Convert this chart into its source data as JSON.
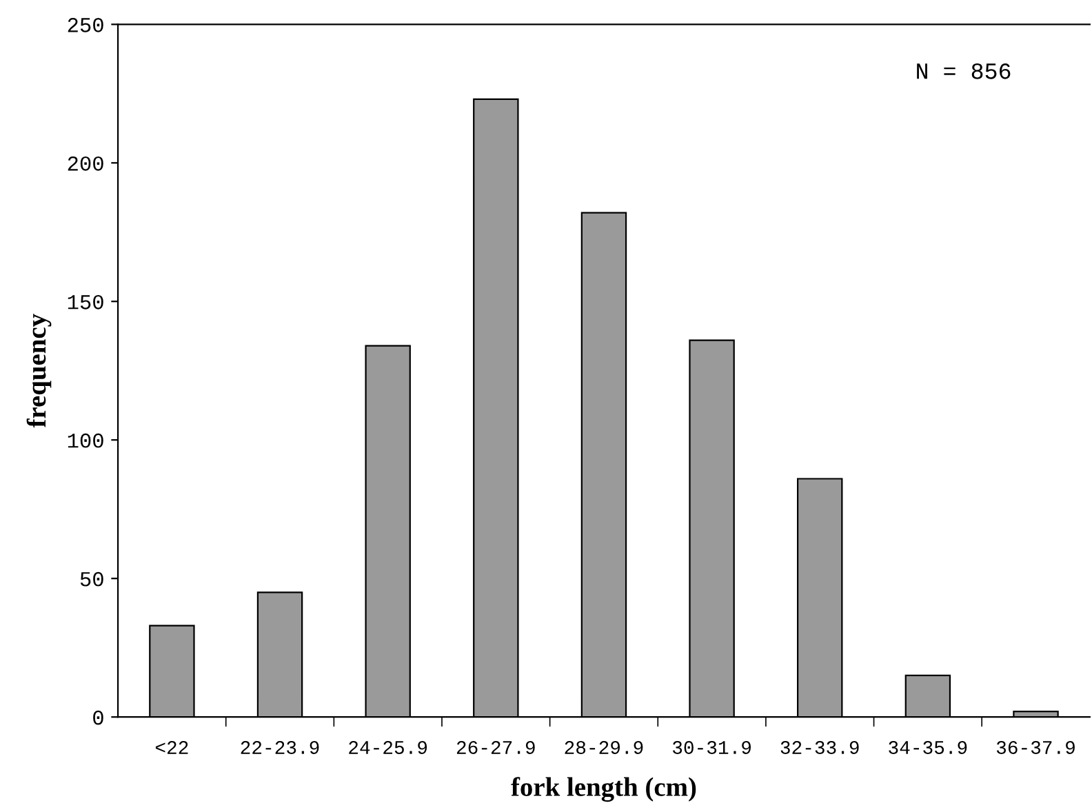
{
  "chart_data": {
    "type": "bar",
    "xlabel": "fork length (cm)",
    "ylabel": "frequency",
    "categories": [
      "<22",
      "22-23.9",
      "24-25.9",
      "26-27.9",
      "28-29.9",
      "30-31.9",
      "32-33.9",
      "34-35.9",
      "36-37.9"
    ],
    "values": [
      33,
      45,
      134,
      223,
      182,
      136,
      86,
      15,
      2
    ],
    "color": "#9a9a9a",
    "ylim": [
      0,
      250
    ],
    "yticks": [
      0,
      50,
      100,
      150,
      200,
      250
    ],
    "annotations": [
      "N = 856"
    ],
    "grid": false,
    "legend": false
  }
}
